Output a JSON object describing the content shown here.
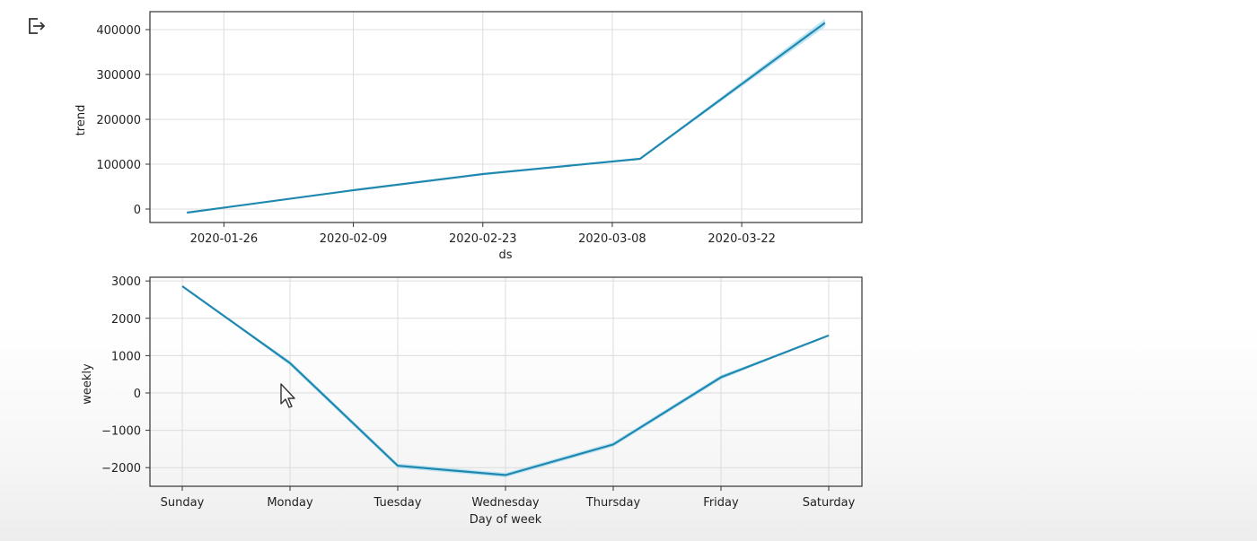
{
  "output_icon": "output-redirect-icon",
  "cursor_icon": "mouse-pointer-icon",
  "colors": {
    "line": "#1f88b0",
    "band": "#a8dcef",
    "grid": "#dcdcdc",
    "frame": "#333333"
  },
  "chart_data": [
    {
      "type": "line",
      "title": "",
      "xlabel": "ds",
      "ylabel": "trend",
      "x_axis_kind": "date",
      "xlim": [
        "2020-01-18",
        "2020-04-04"
      ],
      "ylim": [
        -30000,
        440000
      ],
      "x_ticks": [
        "2020-01-26",
        "2020-02-09",
        "2020-02-23",
        "2020-03-08",
        "2020-03-22"
      ],
      "y_ticks": [
        0,
        100000,
        200000,
        300000,
        400000
      ],
      "y_tick_labels": [
        "0",
        "100000",
        "200000",
        "300000",
        "400000"
      ],
      "grid": true,
      "series": [
        {
          "x": [
            "2020-01-22",
            "2020-02-09",
            "2020-02-23",
            "2020-03-11",
            "2020-03-31"
          ],
          "y": [
            -8000,
            42000,
            78000,
            112000,
            415000
          ],
          "band_half_width": [
            0,
            0,
            0,
            1500,
            9000
          ]
        }
      ]
    },
    {
      "type": "line",
      "title": "",
      "xlabel": "Day of week",
      "ylabel": "weekly",
      "categories": [
        "Sunday",
        "Monday",
        "Tuesday",
        "Wednesday",
        "Thursday",
        "Friday",
        "Saturday"
      ],
      "ylim": [
        -2500,
        3100
      ],
      "y_ticks": [
        -2000,
        -1000,
        0,
        1000,
        2000,
        3000
      ],
      "y_tick_labels": [
        "−2000",
        "−1000",
        "0",
        "1000",
        "2000",
        "3000"
      ],
      "grid": true,
      "series": [
        {
          "values": [
            2860,
            800,
            -1950,
            -2200,
            -1380,
            420,
            1540
          ],
          "band_half_width": [
            0,
            60,
            60,
            60,
            60,
            60,
            0
          ]
        }
      ]
    }
  ]
}
